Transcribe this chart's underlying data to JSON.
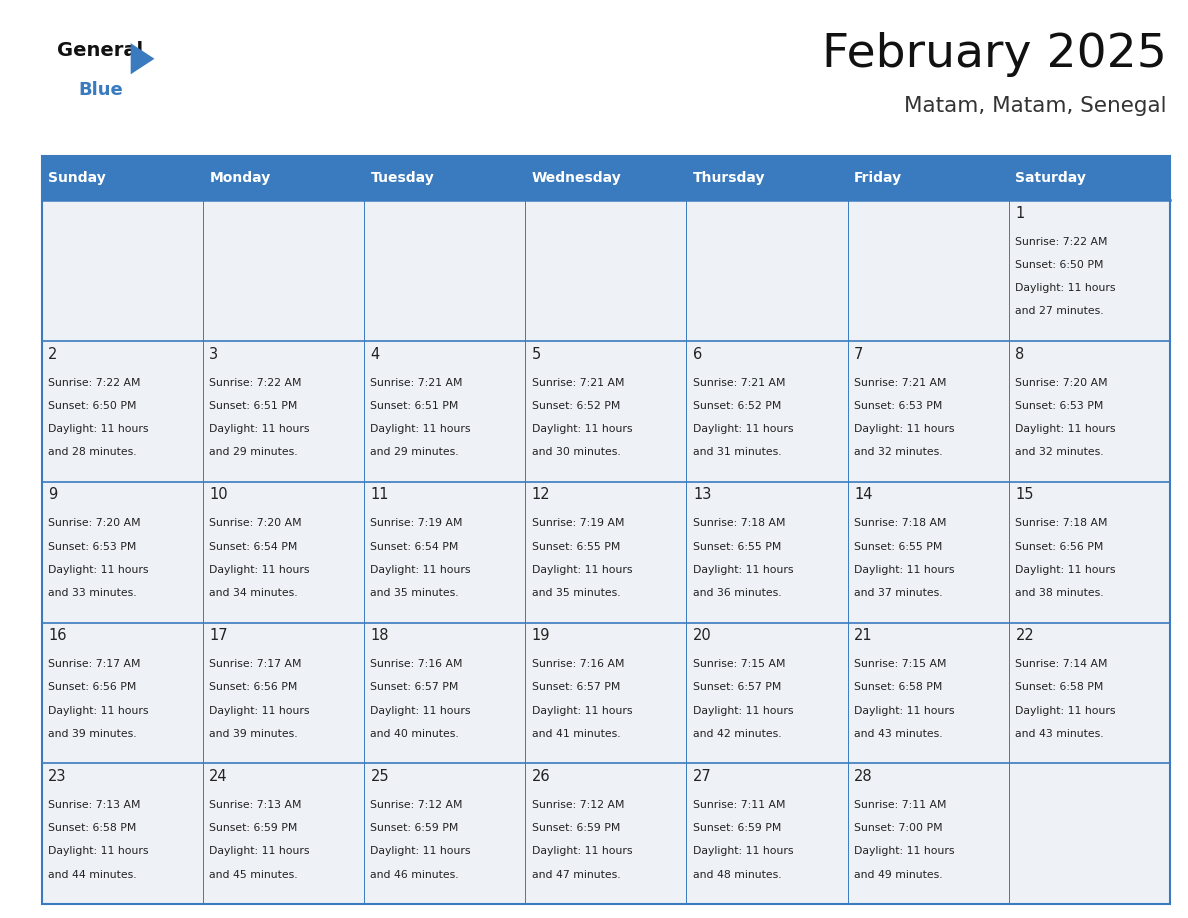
{
  "title": "February 2025",
  "subtitle": "Matam, Matam, Senegal",
  "days_of_week": [
    "Sunday",
    "Monday",
    "Tuesday",
    "Wednesday",
    "Thursday",
    "Friday",
    "Saturday"
  ],
  "header_bg": "#3a7bbf",
  "header_text": "#ffffff",
  "cell_bg_light": "#eef2f7",
  "line_color": "#3a7bbf",
  "text_color": "#222222",
  "calendar_data": [
    [
      null,
      null,
      null,
      null,
      null,
      null,
      {
        "day": 1,
        "sunrise": "7:22 AM",
        "sunset": "6:50 PM",
        "daylight_min": 27
      }
    ],
    [
      {
        "day": 2,
        "sunrise": "7:22 AM",
        "sunset": "6:50 PM",
        "daylight_min": 28
      },
      {
        "day": 3,
        "sunrise": "7:22 AM",
        "sunset": "6:51 PM",
        "daylight_min": 29
      },
      {
        "day": 4,
        "sunrise": "7:21 AM",
        "sunset": "6:51 PM",
        "daylight_min": 29
      },
      {
        "day": 5,
        "sunrise": "7:21 AM",
        "sunset": "6:52 PM",
        "daylight_min": 30
      },
      {
        "day": 6,
        "sunrise": "7:21 AM",
        "sunset": "6:52 PM",
        "daylight_min": 31
      },
      {
        "day": 7,
        "sunrise": "7:21 AM",
        "sunset": "6:53 PM",
        "daylight_min": 32
      },
      {
        "day": 8,
        "sunrise": "7:20 AM",
        "sunset": "6:53 PM",
        "daylight_min": 32
      }
    ],
    [
      {
        "day": 9,
        "sunrise": "7:20 AM",
        "sunset": "6:53 PM",
        "daylight_min": 33
      },
      {
        "day": 10,
        "sunrise": "7:20 AM",
        "sunset": "6:54 PM",
        "daylight_min": 34
      },
      {
        "day": 11,
        "sunrise": "7:19 AM",
        "sunset": "6:54 PM",
        "daylight_min": 35
      },
      {
        "day": 12,
        "sunrise": "7:19 AM",
        "sunset": "6:55 PM",
        "daylight_min": 35
      },
      {
        "day": 13,
        "sunrise": "7:18 AM",
        "sunset": "6:55 PM",
        "daylight_min": 36
      },
      {
        "day": 14,
        "sunrise": "7:18 AM",
        "sunset": "6:55 PM",
        "daylight_min": 37
      },
      {
        "day": 15,
        "sunrise": "7:18 AM",
        "sunset": "6:56 PM",
        "daylight_min": 38
      }
    ],
    [
      {
        "day": 16,
        "sunrise": "7:17 AM",
        "sunset": "6:56 PM",
        "daylight_min": 39
      },
      {
        "day": 17,
        "sunrise": "7:17 AM",
        "sunset": "6:56 PM",
        "daylight_min": 39
      },
      {
        "day": 18,
        "sunrise": "7:16 AM",
        "sunset": "6:57 PM",
        "daylight_min": 40
      },
      {
        "day": 19,
        "sunrise": "7:16 AM",
        "sunset": "6:57 PM",
        "daylight_min": 41
      },
      {
        "day": 20,
        "sunrise": "7:15 AM",
        "sunset": "6:57 PM",
        "daylight_min": 42
      },
      {
        "day": 21,
        "sunrise": "7:15 AM",
        "sunset": "6:58 PM",
        "daylight_min": 43
      },
      {
        "day": 22,
        "sunrise": "7:14 AM",
        "sunset": "6:58 PM",
        "daylight_min": 43
      }
    ],
    [
      {
        "day": 23,
        "sunrise": "7:13 AM",
        "sunset": "6:58 PM",
        "daylight_min": 44
      },
      {
        "day": 24,
        "sunrise": "7:13 AM",
        "sunset": "6:59 PM",
        "daylight_min": 45
      },
      {
        "day": 25,
        "sunrise": "7:12 AM",
        "sunset": "6:59 PM",
        "daylight_min": 46
      },
      {
        "day": 26,
        "sunrise": "7:12 AM",
        "sunset": "6:59 PM",
        "daylight_min": 47
      },
      {
        "day": 27,
        "sunrise": "7:11 AM",
        "sunset": "6:59 PM",
        "daylight_min": 48
      },
      {
        "day": 28,
        "sunrise": "7:11 AM",
        "sunset": "7:00 PM",
        "daylight_min": 49
      },
      null
    ]
  ]
}
